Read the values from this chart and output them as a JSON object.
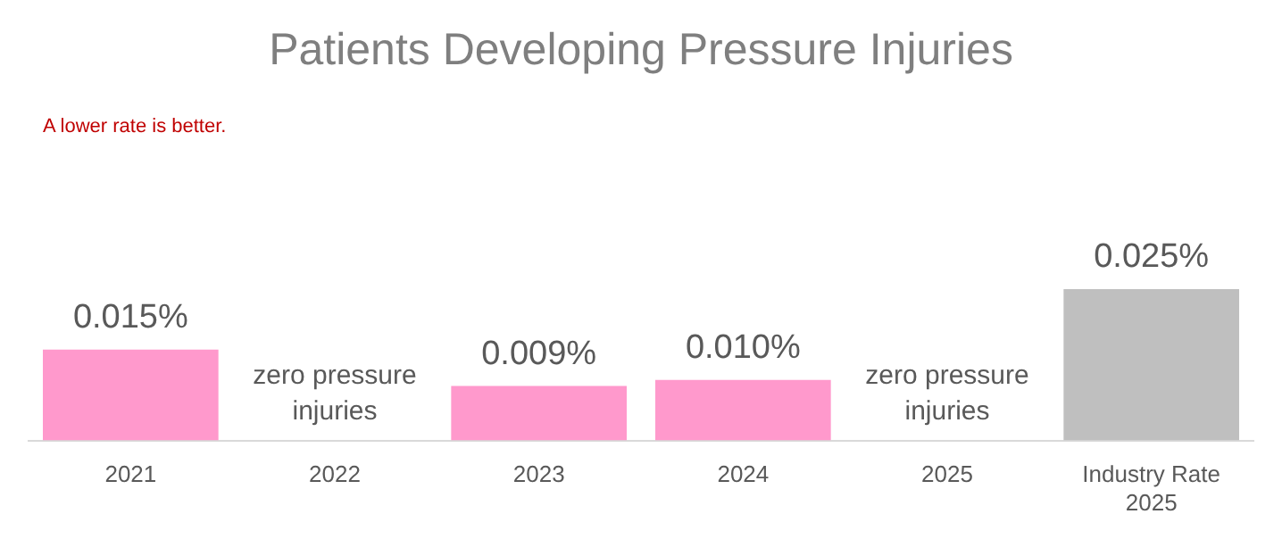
{
  "chart_data": {
    "type": "bar",
    "title": "Patients Developing Pressure Injuries",
    "categories": [
      "2021",
      "2022",
      "2023",
      "2024",
      "2025",
      "Industry Rate 2025"
    ],
    "values": [
      0.015,
      0,
      0.009,
      0.01,
      0,
      0.025
    ],
    "colors": [
      "#ff99cc",
      "#ff99cc",
      "#ff99cc",
      "#ff99cc",
      "#ff99cc",
      "#bfbfbf"
    ],
    "value_labels": [
      "0.015%",
      "zero pressure injuries",
      "0.009%",
      "0.010%",
      "zero pressure injuries",
      "0.025%"
    ],
    "annotations": [
      "A lower rate is better."
    ],
    "grid": false,
    "legend": false
  }
}
